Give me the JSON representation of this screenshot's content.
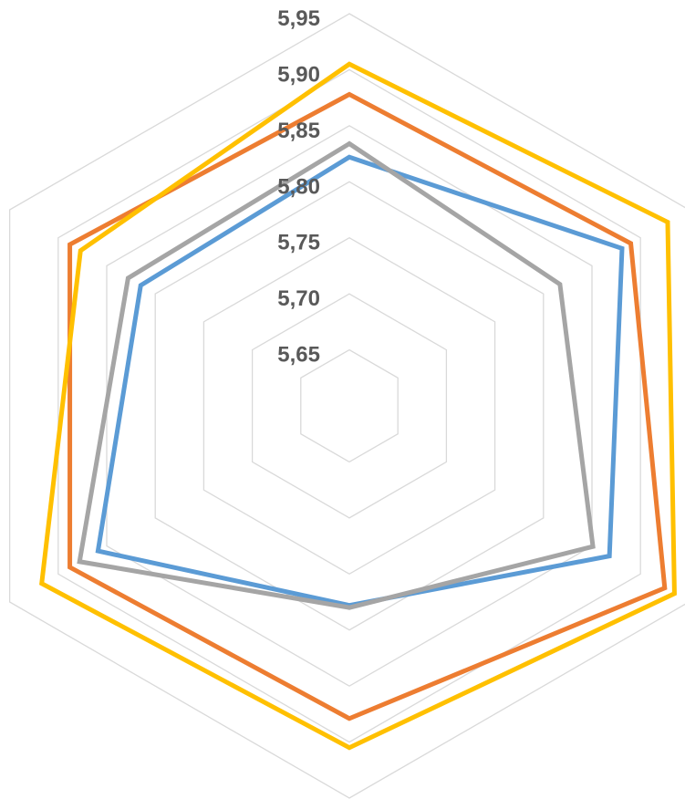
{
  "chart_data": {
    "type": "radar",
    "title": "",
    "categories": [
      "",
      "",
      "",
      "",
      "",
      ""
    ],
    "radial_ticks": [
      "5,65",
      "5,70",
      "5,75",
      "5,80",
      "5,85",
      "5,90",
      "5,95"
    ],
    "rlim": [
      5.6,
      5.95
    ],
    "grid": true,
    "legend": "none",
    "series": [
      {
        "color": "#5B9BD5",
        "values": [
          5.822,
          5.881,
          5.868,
          5.778,
          5.859,
          5.815
        ]
      },
      {
        "color": "#ED7D31",
        "values": [
          5.878,
          5.89,
          5.925,
          5.879,
          5.888,
          5.888
        ]
      },
      {
        "color": "#A5A5A5",
        "values": [
          5.834,
          5.817,
          5.851,
          5.78,
          5.878,
          5.828
        ]
      },
      {
        "color": "#FFC000",
        "values": [
          5.905,
          5.928,
          5.935,
          5.905,
          5.917,
          5.877
        ]
      }
    ]
  }
}
